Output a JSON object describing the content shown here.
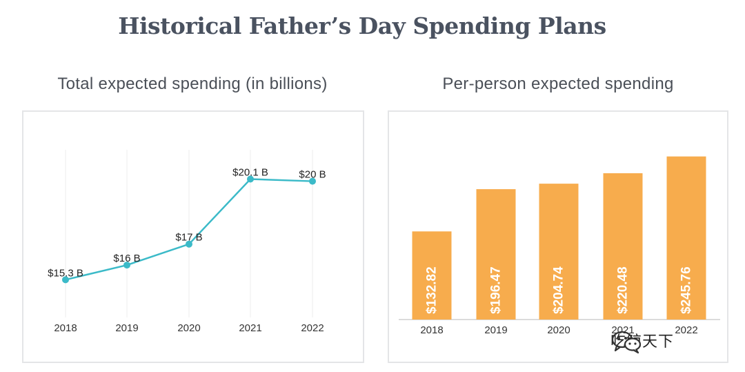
{
  "title": "Historical Father’s Day Spending Plans",
  "chart_data": [
    {
      "type": "line",
      "title": "Total expected spending (in billions)",
      "categories": [
        "2018",
        "2019",
        "2020",
        "2021",
        "2022"
      ],
      "values": [
        15.3,
        16,
        17,
        20.1,
        20
      ],
      "data_labels": [
        "$15.3 B",
        "$16 B",
        "$17 B",
        "$20.1 B",
        "$20 B"
      ],
      "ylim": [
        13.5,
        21.5
      ],
      "grid": "vertical",
      "color": "#3bbac8"
    },
    {
      "type": "bar",
      "title": "Per-person expected spending",
      "categories": [
        "2018",
        "2019",
        "2020",
        "2021",
        "2022"
      ],
      "values": [
        132.82,
        196.47,
        204.74,
        220.48,
        245.76
      ],
      "data_labels": [
        "$132.82",
        "$196.47",
        "$204.74",
        "$220.48",
        "$245.76"
      ],
      "ylim": [
        0,
        260
      ],
      "color": "#f7ac4d"
    }
  ],
  "watermark": {
    "text": "吃鲸天下",
    "icon": "wechat-icon"
  }
}
